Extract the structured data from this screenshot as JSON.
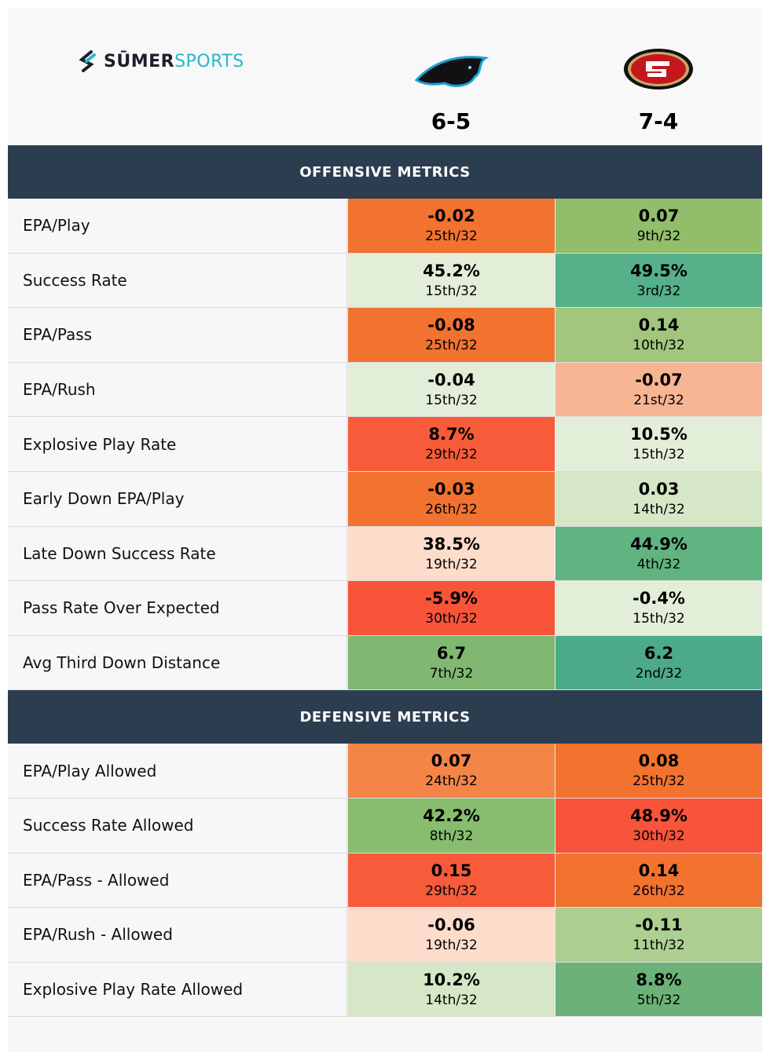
{
  "header": {
    "brand": [
      "SŪMER",
      "SPORTS"
    ],
    "records": [
      "6-5",
      "7-4"
    ]
  },
  "sections": [
    {
      "title": "OFFENSIVE METRICS",
      "rows": [
        {
          "metric": "EPA/Play",
          "cells": [
            {
              "value": "-0.02",
              "rank": "25th/32",
              "color": "#f27230"
            },
            {
              "value": "0.07",
              "rank": "9th/32",
              "color": "#92bd6a"
            }
          ]
        },
        {
          "metric": "Success Rate",
          "cells": [
            {
              "value": "45.2%",
              "rank": "15th/32",
              "color": "#e3eed9"
            },
            {
              "value": "49.5%",
              "rank": "3rd/32",
              "color": "#56b089"
            }
          ]
        },
        {
          "metric": "EPA/Pass",
          "cells": [
            {
              "value": "-0.08",
              "rank": "25th/32",
              "color": "#f27230"
            },
            {
              "value": "0.14",
              "rank": "10th/32",
              "color": "#a1c67c"
            }
          ]
        },
        {
          "metric": "EPA/Rush",
          "cells": [
            {
              "value": "-0.04",
              "rank": "15th/32",
              "color": "#e3eed9"
            },
            {
              "value": "-0.07",
              "rank": "21st/32",
              "color": "#f8b593"
            }
          ]
        },
        {
          "metric": "Explosive Play Rate",
          "cells": [
            {
              "value": "8.7%",
              "rank": "29th/32",
              "color": "#f75b3a"
            },
            {
              "value": "10.5%",
              "rank": "15th/32",
              "color": "#e3eed9"
            }
          ]
        },
        {
          "metric": "Early Down EPA/Play",
          "cells": [
            {
              "value": "-0.03",
              "rank": "26th/32",
              "color": "#f27230"
            },
            {
              "value": "0.03",
              "rank": "14th/32",
              "color": "#d5e7c6"
            }
          ]
        },
        {
          "metric": "Late Down Success Rate",
          "cells": [
            {
              "value": "38.5%",
              "rank": "19th/32",
              "color": "#fcdccb"
            },
            {
              "value": "44.9%",
              "rank": "4th/32",
              "color": "#62b382"
            }
          ]
        },
        {
          "metric": "Pass Rate Over Expected",
          "cells": [
            {
              "value": "-5.9%",
              "rank": "30th/32",
              "color": "#f7543a"
            },
            {
              "value": "-0.4%",
              "rank": "15th/32",
              "color": "#e3eed9"
            }
          ]
        },
        {
          "metric": "Avg Third Down Distance",
          "cells": [
            {
              "value": "6.7",
              "rank": "7th/32",
              "color": "#80b872"
            },
            {
              "value": "6.2",
              "rank": "2nd/32",
              "color": "#4caa88"
            }
          ]
        }
      ]
    },
    {
      "title": "DEFENSIVE METRICS",
      "rows": [
        {
          "metric": "EPA/Play Allowed",
          "cells": [
            {
              "value": "0.07",
              "rank": "24th/32",
              "color": "#f48547"
            },
            {
              "value": "0.08",
              "rank": "25th/32",
              "color": "#f27230"
            }
          ]
        },
        {
          "metric": "Success Rate Allowed",
          "cells": [
            {
              "value": "42.2%",
              "rank": "8th/32",
              "color": "#88bc6e"
            },
            {
              "value": "48.9%",
              "rank": "30th/32",
              "color": "#f7543a"
            }
          ]
        },
        {
          "metric": "EPA/Pass - Allowed",
          "cells": [
            {
              "value": "0.15",
              "rank": "29th/32",
              "color": "#f75b3a"
            },
            {
              "value": "0.14",
              "rank": "26th/32",
              "color": "#f27230"
            }
          ]
        },
        {
          "metric": "EPA/Rush - Allowed",
          "cells": [
            {
              "value": "-0.06",
              "rank": "19th/32",
              "color": "#fcdccb"
            },
            {
              "value": "-0.11",
              "rank": "11th/32",
              "color": "#adcf91"
            }
          ]
        },
        {
          "metric": "Explosive Play Rate Allowed",
          "cells": [
            {
              "value": "10.2%",
              "rank": "14th/32",
              "color": "#d5e7c6"
            },
            {
              "value": "8.8%",
              "rank": "5th/32",
              "color": "#6cb178"
            }
          ]
        }
      ]
    }
  ]
}
